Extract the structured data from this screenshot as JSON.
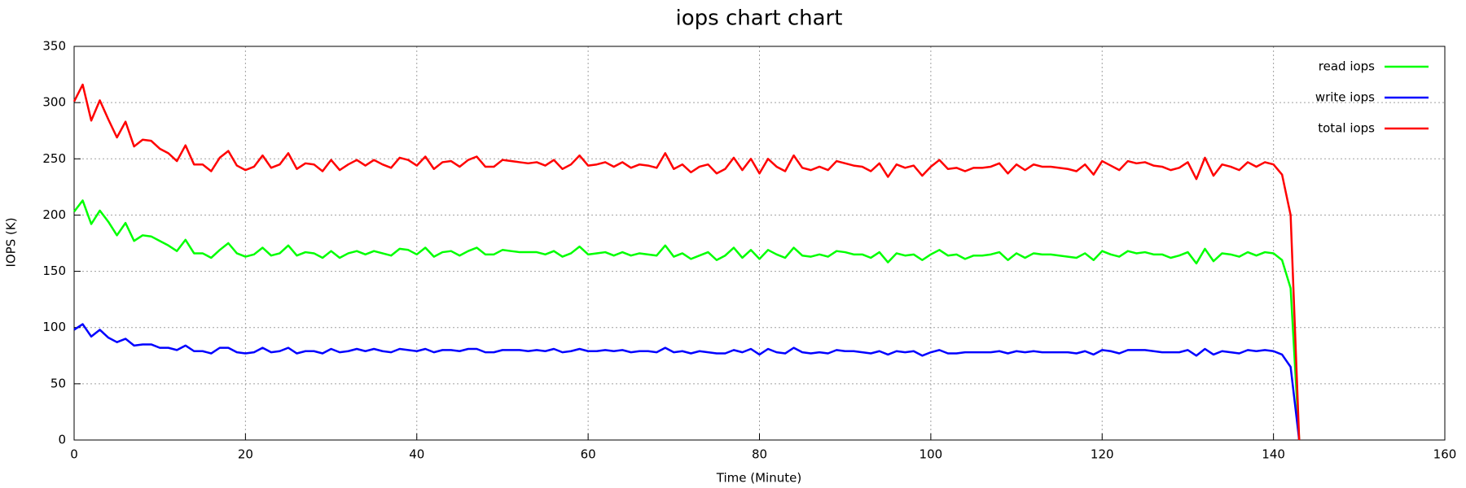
{
  "chart_data": {
    "type": "line",
    "title": "iops chart chart",
    "xlabel": "Time (Minute)",
    "ylabel": "IOPS (K)",
    "x": [
      0,
      1,
      2,
      3,
      4,
      5,
      6,
      7,
      8,
      9,
      10,
      11,
      12,
      13,
      14,
      15,
      16,
      17,
      18,
      19,
      20,
      21,
      22,
      23,
      24,
      25,
      26,
      27,
      28,
      29,
      30,
      31,
      32,
      33,
      34,
      35,
      36,
      37,
      38,
      39,
      40,
      41,
      42,
      43,
      44,
      45,
      46,
      47,
      48,
      49,
      50,
      51,
      52,
      53,
      54,
      55,
      56,
      57,
      58,
      59,
      60,
      61,
      62,
      63,
      64,
      65,
      66,
      67,
      68,
      69,
      70,
      71,
      72,
      73,
      74,
      75,
      76,
      77,
      78,
      79,
      80,
      81,
      82,
      83,
      84,
      85,
      86,
      87,
      88,
      89,
      90,
      91,
      92,
      93,
      94,
      95,
      96,
      97,
      98,
      99,
      100,
      101,
      102,
      103,
      104,
      105,
      106,
      107,
      108,
      109,
      110,
      111,
      112,
      113,
      114,
      115,
      116,
      117,
      118,
      119,
      120,
      121,
      122,
      123,
      124,
      125,
      126,
      127,
      128,
      129,
      130,
      131,
      132,
      133,
      134,
      135,
      136,
      137,
      138,
      139,
      140,
      141,
      142,
      143
    ],
    "series": [
      {
        "name": "read iops",
        "color": "#00ff00",
        "values": [
          203,
          213,
          192,
          204,
          194,
          182,
          193,
          177,
          182,
          181,
          177,
          173,
          168,
          178,
          166,
          166,
          162,
          169,
          175,
          166,
          163,
          165,
          171,
          164,
          166,
          173,
          164,
          167,
          166,
          162,
          168,
          162,
          166,
          168,
          165,
          168,
          166,
          164,
          170,
          169,
          165,
          171,
          163,
          167,
          168,
          164,
          168,
          171,
          165,
          165,
          169,
          168,
          167,
          167,
          167,
          165,
          168,
          163,
          166,
          172,
          165,
          166,
          167,
          164,
          167,
          164,
          166,
          165,
          164,
          173,
          163,
          166,
          161,
          164,
          167,
          160,
          164,
          171,
          162,
          169,
          161,
          169,
          165,
          162,
          171,
          164,
          163,
          165,
          163,
          168,
          167,
          165,
          165,
          162,
          167,
          158,
          166,
          164,
          165,
          160,
          165,
          169,
          164,
          165,
          161,
          164,
          164,
          165,
          167,
          160,
          166,
          162,
          166,
          165,
          165,
          164,
          163,
          162,
          166,
          160,
          168,
          165,
          163,
          168,
          166,
          167,
          165,
          165,
          162,
          164,
          167,
          157,
          170,
          159,
          166,
          165,
          163,
          167,
          164,
          167,
          166,
          160,
          135,
          0
        ]
      },
      {
        "name": "write iops",
        "color": "#0000ff",
        "values": [
          98,
          103,
          92,
          98,
          91,
          87,
          90,
          84,
          85,
          85,
          82,
          82,
          80,
          84,
          79,
          79,
          77,
          82,
          82,
          78,
          77,
          78,
          82,
          78,
          79,
          82,
          77,
          79,
          79,
          77,
          81,
          78,
          79,
          81,
          79,
          81,
          79,
          78,
          81,
          80,
          79,
          81,
          78,
          80,
          80,
          79,
          81,
          81,
          78,
          78,
          80,
          80,
          80,
          79,
          80,
          79,
          81,
          78,
          79,
          81,
          79,
          79,
          80,
          79,
          80,
          78,
          79,
          79,
          78,
          82,
          78,
          79,
          77,
          79,
          78,
          77,
          77,
          80,
          78,
          81,
          76,
          81,
          78,
          77,
          82,
          78,
          77,
          78,
          77,
          80,
          79,
          79,
          78,
          77,
          79,
          76,
          79,
          78,
          79,
          75,
          78,
          80,
          77,
          77,
          78,
          78,
          78,
          78,
          79,
          77,
          79,
          78,
          79,
          78,
          78,
          78,
          78,
          77,
          79,
          76,
          80,
          79,
          77,
          80,
          80,
          80,
          79,
          78,
          78,
          78,
          80,
          75,
          81,
          76,
          79,
          78,
          77,
          80,
          79,
          80,
          79,
          76,
          65,
          0
        ]
      },
      {
        "name": "total iops",
        "color": "#ff0000",
        "values": [
          301,
          316,
          284,
          302,
          285,
          269,
          283,
          261,
          267,
          266,
          259,
          255,
          248,
          262,
          245,
          245,
          239,
          251,
          257,
          244,
          240,
          243,
          253,
          242,
          245,
          255,
          241,
          246,
          245,
          239,
          249,
          240,
          245,
          249,
          244,
          249,
          245,
          242,
          251,
          249,
          244,
          252,
          241,
          247,
          248,
          243,
          249,
          252,
          243,
          243,
          249,
          248,
          247,
          246,
          247,
          244,
          249,
          241,
          245,
          253,
          244,
          245,
          247,
          243,
          247,
          242,
          245,
          244,
          242,
          255,
          241,
          245,
          238,
          243,
          245,
          237,
          241,
          251,
          240,
          250,
          237,
          250,
          243,
          239,
          253,
          242,
          240,
          243,
          240,
          248,
          246,
          244,
          243,
          239,
          246,
          234,
          245,
          242,
          244,
          235,
          243,
          249,
          241,
          242,
          239,
          242,
          242,
          243,
          246,
          237,
          245,
          240,
          245,
          243,
          243,
          242,
          241,
          239,
          245,
          236,
          248,
          244,
          240,
          248,
          246,
          247,
          244,
          243,
          240,
          242,
          247,
          232,
          251,
          235,
          245,
          243,
          240,
          247,
          243,
          247,
          245,
          236,
          200,
          0
        ]
      }
    ],
    "xlim": [
      0,
      160
    ],
    "xticks": [
      0,
      20,
      40,
      60,
      80,
      100,
      120,
      140,
      160
    ],
    "ylim": [
      0,
      350
    ],
    "yticks": [
      0,
      50,
      100,
      150,
      200,
      250,
      300,
      350
    ],
    "grid": true,
    "legend": "upper right"
  }
}
